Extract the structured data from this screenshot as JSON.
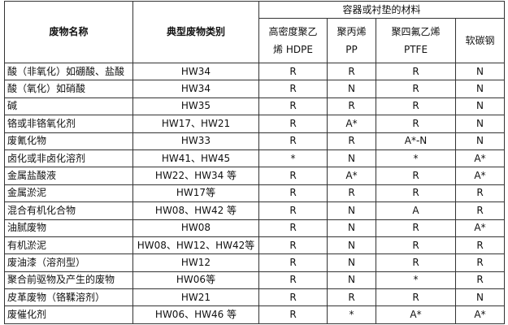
{
  "headers": {
    "waste_name": "废物名称",
    "waste_category": "典型废物类别",
    "material_group": "容器或衬垫的材料",
    "materials": [
      "高密度聚乙烯 HDPE",
      "聚丙烯 PP",
      "聚四氟乙烯 PTFE",
      "软碳钢"
    ],
    "materials_lines": [
      [
        "高密度聚乙",
        "烯 HDPE"
      ],
      [
        "聚丙烯",
        "PP"
      ],
      [
        "聚四氟乙烯",
        "PTFE"
      ],
      [
        "软碳钢"
      ]
    ]
  },
  "rows": [
    {
      "name": "酸（非氧化）如硼酸、盐酸",
      "category": "HW34",
      "hdpe": "R",
      "pp": "R",
      "ptfe": "R",
      "steel": "N"
    },
    {
      "name": "酸（氧化）如硝酸",
      "category": "HW34",
      "hdpe": "R",
      "pp": "N",
      "ptfe": "R",
      "steel": "N"
    },
    {
      "name": "碱",
      "category": "HW35",
      "hdpe": "R",
      "pp": "R",
      "ptfe": "R",
      "steel": "N"
    },
    {
      "name": "铬或非铬氧化剂",
      "category": "HW17、HW21",
      "hdpe": "R",
      "pp": "A*",
      "ptfe": "R",
      "steel": "N"
    },
    {
      "name": "废氰化物",
      "category": "HW33",
      "hdpe": "R",
      "pp": "R",
      "ptfe": "A*-N",
      "steel": "N"
    },
    {
      "name": "卤化或非卤化溶剂",
      "category": "HW41、HW45",
      "hdpe": "*",
      "pp": "N",
      "ptfe": "*",
      "steel": "A*"
    },
    {
      "name": "金属盐酸液",
      "category": "HW22、HW34 等",
      "hdpe": "R",
      "pp": "A*",
      "ptfe": "R",
      "steel": "A*"
    },
    {
      "name": "金属淤泥",
      "category": "HW17等",
      "hdpe": "R",
      "pp": "R",
      "ptfe": "R",
      "steel": "R"
    },
    {
      "name": "混合有机化合物",
      "category": "HW08、HW42 等",
      "hdpe": "R",
      "pp": "N",
      "ptfe": "A",
      "steel": "R"
    },
    {
      "name": "油腻废物",
      "category": "HW08",
      "hdpe": "R",
      "pp": "N",
      "ptfe": "R",
      "steel": "A*"
    },
    {
      "name": "有机淤泥",
      "category": "HW08、HW12、HW42等",
      "hdpe": "R",
      "pp": "N",
      "ptfe": "R",
      "steel": "R"
    },
    {
      "name": "废油漆（溶剂型）",
      "category": "HW12",
      "hdpe": "R",
      "pp": "N",
      "ptfe": "R",
      "steel": "R"
    },
    {
      "name": "聚合前驱物及产生的废物",
      "category": "HW06等",
      "hdpe": "R",
      "pp": "N",
      "ptfe": "*",
      "steel": "R"
    },
    {
      "name": "皮革废物（铬鞣溶剂）",
      "category": "HW21",
      "hdpe": "R",
      "pp": "R",
      "ptfe": "R",
      "steel": "N"
    },
    {
      "name": "废催化剂",
      "category": "HW06、HW46 等",
      "hdpe": "R",
      "pp": "*",
      "ptfe": "A*",
      "steel": "A*"
    }
  ]
}
